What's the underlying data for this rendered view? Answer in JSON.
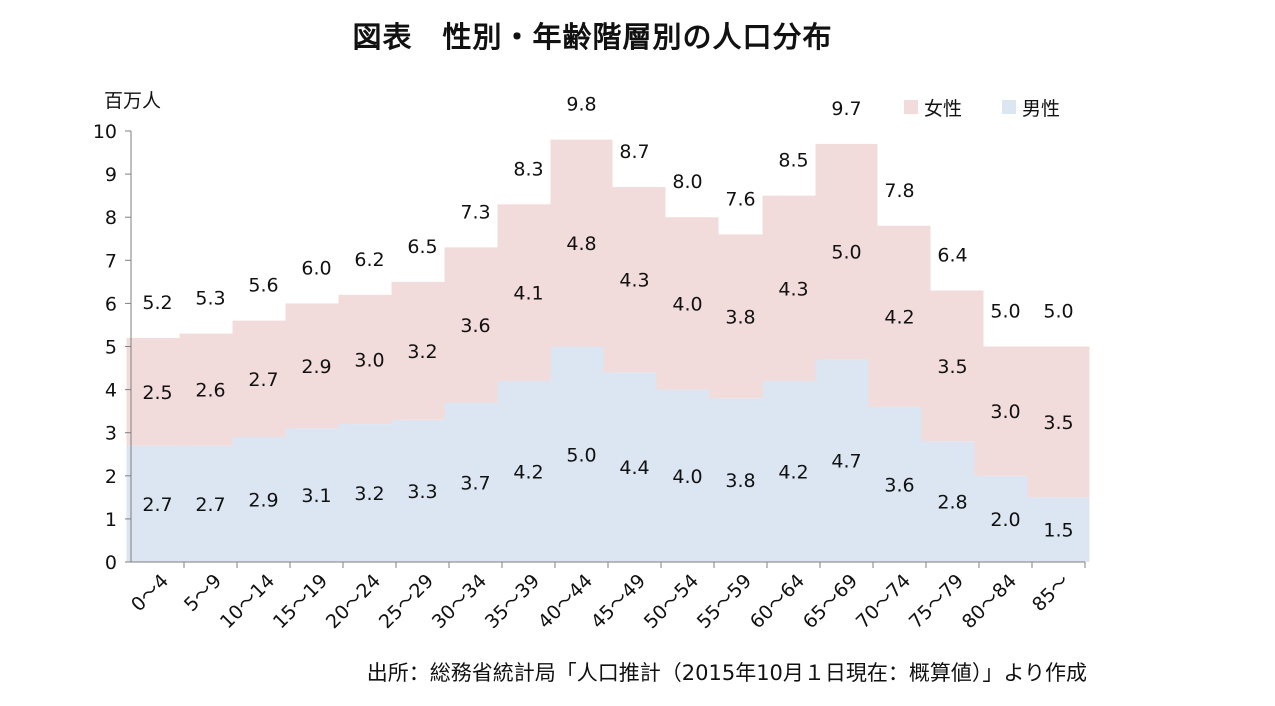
{
  "chart_data": {
    "type": "bar",
    "stacked": true,
    "title": "図表　性別・年齢階層別の人口分布",
    "ylabel": "百万人",
    "xlabel": "",
    "ylim": [
      0,
      10
    ],
    "yticks": [
      0,
      1,
      2,
      3,
      4,
      5,
      6,
      7,
      8,
      9,
      10
    ],
    "categories": [
      "0～4",
      "5～9",
      "10～14",
      "15～19",
      "20～24",
      "25～29",
      "30～34",
      "35～39",
      "40～44",
      "45～49",
      "50～54",
      "55～59",
      "60～64",
      "65～69",
      "70～74",
      "75～79",
      "80～84",
      "85～"
    ],
    "series": [
      {
        "name": "男性",
        "color": "#dce6f2",
        "values": [
          2.7,
          2.7,
          2.9,
          3.1,
          3.2,
          3.3,
          3.7,
          4.2,
          5.0,
          4.4,
          4.0,
          3.8,
          4.2,
          4.7,
          3.6,
          2.8,
          2.0,
          1.5
        ]
      },
      {
        "name": "女性",
        "color": "#f2dcdb",
        "values": [
          2.5,
          2.6,
          2.7,
          2.9,
          3.0,
          3.2,
          3.6,
          4.1,
          4.8,
          4.3,
          4.0,
          3.8,
          4.3,
          5.0,
          4.2,
          3.5,
          3.0,
          3.5
        ]
      }
    ],
    "totals": [
      5.2,
      5.3,
      5.6,
      6.0,
      6.2,
      6.5,
      7.3,
      8.3,
      9.8,
      8.7,
      8.0,
      7.6,
      8.5,
      9.7,
      7.8,
      6.4,
      5.0,
      5.0
    ],
    "legend_position": "top-right",
    "legend_order": [
      "女性",
      "男性"
    ],
    "grid": false
  },
  "source": "出所：総務省統計局「人口推計（2015年10月１日現在：概算値）」より作成"
}
